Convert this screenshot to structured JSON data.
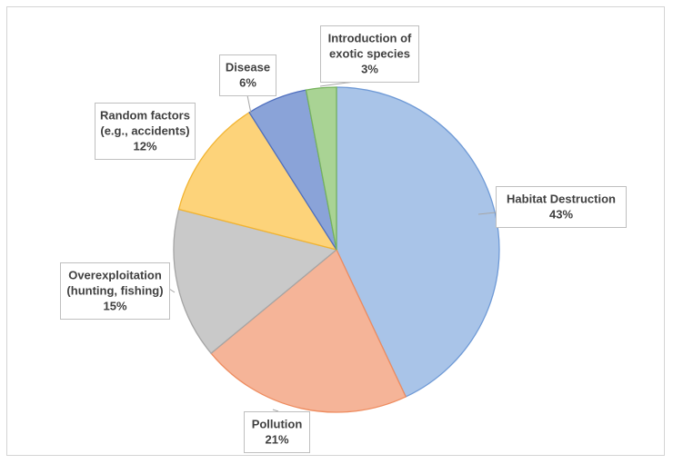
{
  "chart_data": {
    "type": "pie",
    "title": "",
    "slices": [
      {
        "label_lines": [
          "Habitat Destruction"
        ],
        "value_label": "43%",
        "value": 43,
        "fill": "#a9c4e8",
        "stroke": "#6f9ad6"
      },
      {
        "label_lines": [
          "Pollution"
        ],
        "value_label": "21%",
        "value": 21,
        "fill": "#f5b498",
        "stroke": "#ee8c5f"
      },
      {
        "label_lines": [
          "Overexploitation",
          "(hunting, fishing)"
        ],
        "value_label": "15%",
        "value": 15,
        "fill": "#c9c9c9",
        "stroke": "#a5a5a5"
      },
      {
        "label_lines": [
          "Random factors",
          "(e.g., accidents)"
        ],
        "value_label": "12%",
        "value": 12,
        "fill": "#fdd37a",
        "stroke": "#f2b431"
      },
      {
        "label_lines": [
          "Disease"
        ],
        "value_label": "6%",
        "value": 6,
        "fill": "#8aa3d8",
        "stroke": "#4f6fbf"
      },
      {
        "label_lines": [
          "Introduction of",
          "exotic species"
        ],
        "value_label": "3%",
        "value": 3,
        "fill": "#a9d394",
        "stroke": "#76b35d"
      }
    ],
    "start": "12 o'clock",
    "direction": "clockwise",
    "legend": "none",
    "data_labels": "callout boxes with category name and percentage"
  }
}
